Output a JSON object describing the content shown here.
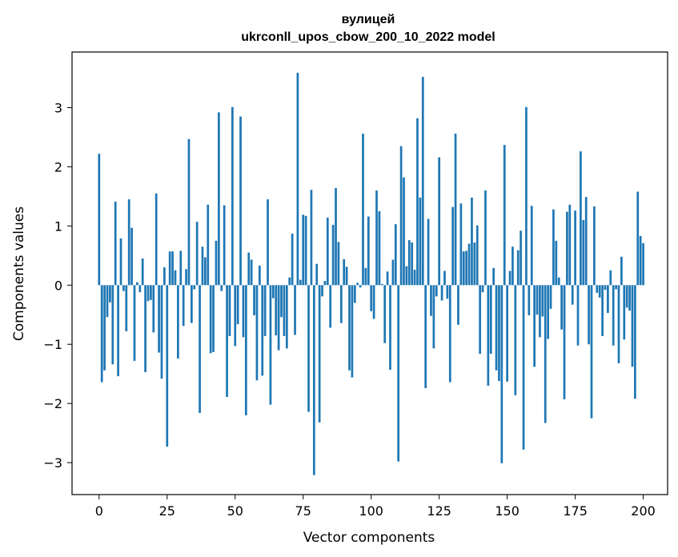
{
  "chart_data": {
    "type": "bar",
    "title_line1": "вулицей",
    "title_line2": "ukrconll_upos_cbow_200_10_2022 model",
    "xlabel": "Vector components",
    "ylabel": "Components values",
    "xlim": [
      -9.95,
      208.95
    ],
    "ylim": [
      -3.54,
      3.94
    ],
    "xticks": [
      0,
      25,
      50,
      75,
      100,
      125,
      150,
      175,
      200
    ],
    "xtick_labels": [
      "0",
      "25",
      "50",
      "75",
      "100",
      "125",
      "150",
      "175",
      "200"
    ],
    "yticks": [
      -3,
      -2,
      -1,
      0,
      1,
      2,
      3
    ],
    "ytick_labels": [
      "−3",
      "−2",
      "−1",
      "0",
      "1",
      "2",
      "3"
    ],
    "grid": false,
    "bar_color": "#1f77b4",
    "values": [
      2.22,
      -1.64,
      -1.44,
      -0.54,
      -0.29,
      -1.34,
      1.41,
      -1.54,
      0.79,
      -0.1,
      -0.78,
      1.45,
      0.97,
      -1.28,
      0.05,
      -0.12,
      0.45,
      -1.47,
      -0.27,
      -0.25,
      -0.8,
      1.55,
      -1.14,
      -1.58,
      0.3,
      -2.73,
      0.57,
      0.57,
      0.25,
      -1.24,
      0.58,
      -0.69,
      0.27,
      2.47,
      -0.64,
      -0.07,
      1.07,
      -2.16,
      0.65,
      0.47,
      1.36,
      -1.15,
      -1.13,
      0.75,
      2.92,
      -0.1,
      1.35,
      -1.89,
      -0.86,
      3.01,
      -1.03,
      -0.66,
      2.85,
      -0.88,
      -2.2,
      0.55,
      0.43,
      -0.51,
      -1.61,
      0.33,
      -1.53,
      -0.86,
      1.45,
      -2.02,
      -0.22,
      -0.85,
      -1.1,
      -0.54,
      -0.86,
      -1.07,
      0.13,
      0.87,
      -0.84,
      3.59,
      0.09,
      1.19,
      1.17,
      -2.14,
      1.61,
      -3.21,
      0.36,
      -2.32,
      -0.19,
      0.07,
      1.14,
      -0.72,
      1.02,
      1.64,
      0.73,
      -0.64,
      0.44,
      0.31,
      -1.44,
      -1.56,
      -0.3,
      0.04,
      -0.04,
      2.56,
      0.29,
      1.16,
      -0.44,
      -0.57,
      1.6,
      1.25,
      0.02,
      -0.98,
      0.23,
      -1.43,
      0.43,
      1.03,
      -2.98,
      2.35,
      1.82,
      0.32,
      0.76,
      0.72,
      0.26,
      2.82,
      1.48,
      3.52,
      -1.74,
      1.12,
      -0.52,
      -1.07,
      -0.19,
      2.16,
      -0.26,
      0.24,
      -0.23,
      -1.64,
      1.32,
      2.56,
      -0.67,
      1.38,
      0.57,
      0.58,
      0.7,
      1.48,
      0.72,
      1.01,
      -1.16,
      -0.12,
      1.6,
      -1.7,
      -1.16,
      0.29,
      -1.44,
      -1.62,
      -3.01,
      2.37,
      -1.63,
      0.24,
      0.65,
      -1.86,
      0.59,
      0.92,
      -2.78,
      3.01,
      -0.51,
      1.34,
      -1.38,
      -0.5,
      -0.88,
      -0.53,
      -2.33,
      -0.91,
      -0.4,
      1.28,
      0.75,
      0.13,
      -0.75,
      -1.93,
      1.24,
      1.36,
      -0.33,
      1.26,
      -1.02,
      2.26,
      1.1,
      1.49,
      -1.0,
      -2.25,
      1.33,
      -0.13,
      -0.21,
      -0.86,
      -0.08,
      -0.47,
      0.25,
      -1.02,
      -0.07,
      -1.32,
      0.48,
      -0.92,
      -0.38,
      -0.43,
      -1.38,
      -1.92,
      1.58,
      0.83,
      0.71
    ]
  }
}
